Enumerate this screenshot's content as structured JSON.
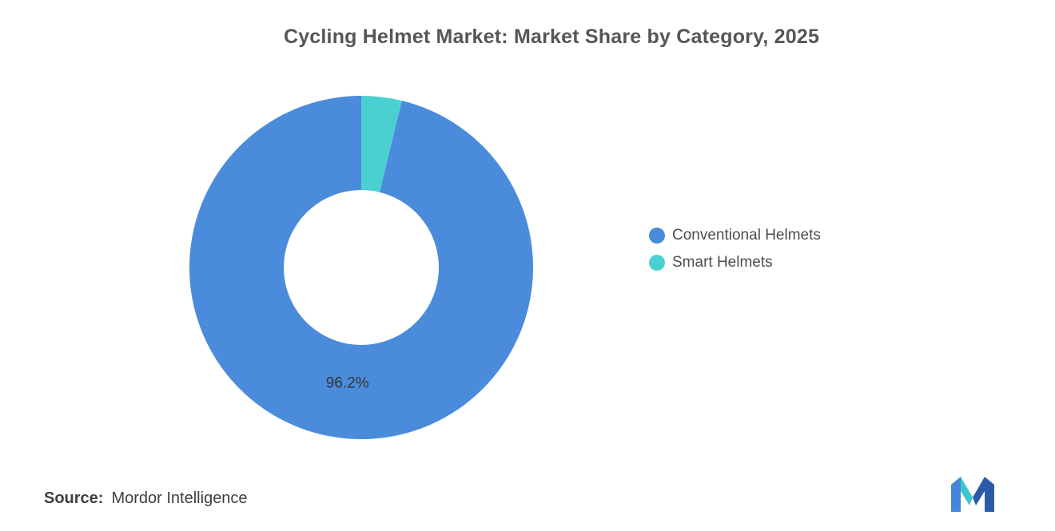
{
  "title": "Cycling Helmet Market: Market Share by Category, 2025",
  "source": {
    "label": "Source:",
    "text": "Mordor Intelligence"
  },
  "logo": {
    "left_color": "#4586d8",
    "middle_color": "#3ec6ce",
    "right_color": "#2b5ba8"
  },
  "chart_data": {
    "type": "pie",
    "donut": true,
    "title": "Cycling Helmet Market: Market Share by Category, 2025",
    "legend_position": "right",
    "start_angle_deg": 0,
    "direction": "clockwise",
    "inner_radius_ratio": 0.45,
    "slices": [
      {
        "label": "Conventional Helmets",
        "value": 96.2,
        "color": "#4a8cdb",
        "data_label": "96.2%"
      },
      {
        "label": "Smart Helmets",
        "value": 3.8,
        "color": "#4bd0d2",
        "data_label": ""
      }
    ]
  }
}
